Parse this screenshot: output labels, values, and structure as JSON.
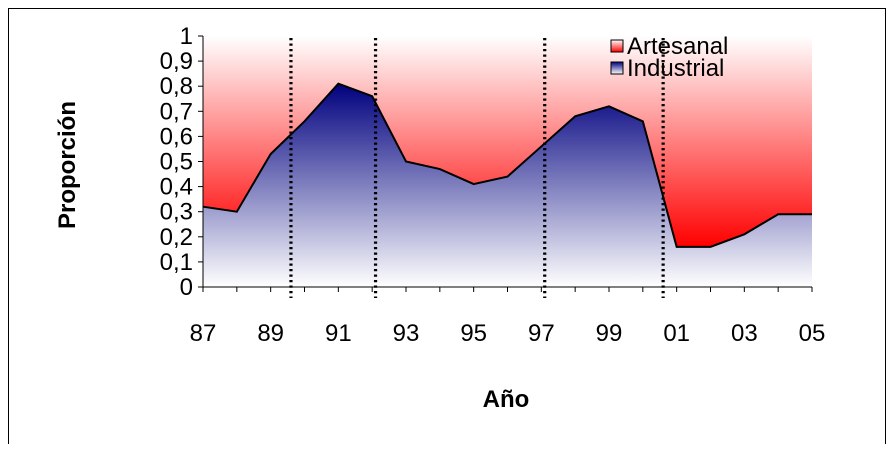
{
  "chart_data": {
    "type": "area",
    "stacked": true,
    "xlabel": "Año",
    "ylabel": "Proporción",
    "ylim": [
      0,
      1
    ],
    "y_ticks": [
      "0",
      "0,1",
      "0,2",
      "0,3",
      "0,4",
      "0,5",
      "0,6",
      "0,7",
      "0,8",
      "0,9",
      "1"
    ],
    "x_ticks": [
      "87",
      "89",
      "91",
      "93",
      "95",
      "97",
      "99",
      "01",
      "03",
      "05"
    ],
    "x": [
      1987,
      1988,
      1989,
      1990,
      1991,
      1992,
      1993,
      1994,
      1995,
      1996,
      1997,
      1998,
      1999,
      2000,
      2001,
      2002,
      2003,
      2004,
      2005
    ],
    "series": [
      {
        "name": "Industrial",
        "values": [
          0.32,
          0.3,
          0.53,
          0.66,
          0.81,
          0.76,
          0.5,
          0.47,
          0.41,
          0.44,
          0.56,
          0.68,
          0.72,
          0.66,
          0.16,
          0.16,
          0.21,
          0.29,
          0.29
        ]
      },
      {
        "name": "Artesanal",
        "values": [
          0.68,
          0.7,
          0.47,
          0.34,
          0.19,
          0.24,
          0.5,
          0.53,
          0.59,
          0.56,
          0.44,
          0.32,
          0.28,
          0.34,
          0.84,
          0.84,
          0.79,
          0.71,
          0.71
        ]
      }
    ],
    "vertical_dotted_lines_x": [
      1989.6,
      1992.1,
      1997.1,
      2000.6
    ],
    "legend_position": "top-right",
    "grid": false,
    "colors": {
      "artesanal_top": "#ffffff",
      "artesanal_bottom": "#ff0000",
      "industrial_top": "#00007f",
      "industrial_bottom": "#ffffff",
      "line": "#000000"
    }
  }
}
